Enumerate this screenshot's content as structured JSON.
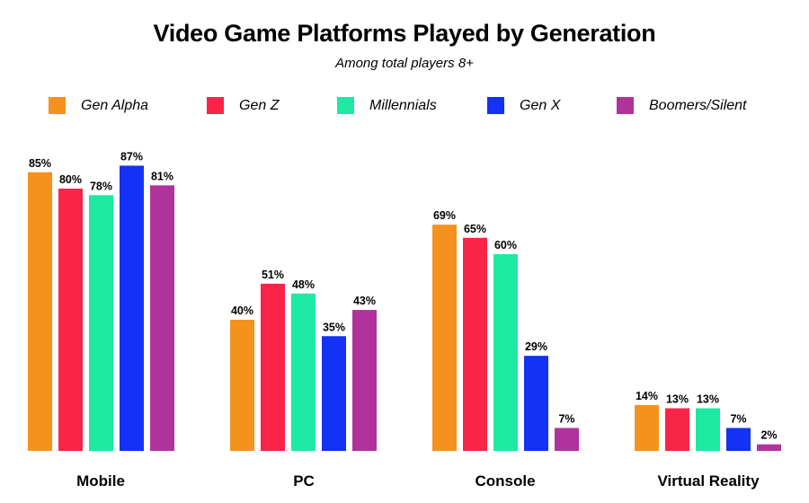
{
  "chart_data": {
    "type": "bar",
    "title": "Video Game Platforms Played by Generation",
    "subtitle": "Among total players 8+",
    "categories": [
      "Mobile",
      "PC",
      "Console",
      "Virtual Reality"
    ],
    "series": [
      {
        "name": "Gen Alpha",
        "color": "#f5921e",
        "values": [
          85,
          40,
          69,
          14
        ]
      },
      {
        "name": "Gen Z",
        "color": "#fa2449",
        "values": [
          80,
          51,
          65,
          13
        ]
      },
      {
        "name": "Millennials",
        "color": "#1de9a3",
        "values": [
          78,
          48,
          60,
          13
        ]
      },
      {
        "name": "Gen X",
        "color": "#1432f5",
        "values": [
          87,
          35,
          29,
          7
        ]
      },
      {
        "name": "Boomers/Silent",
        "color": "#b0339c",
        "values": [
          81,
          43,
          7,
          2
        ]
      }
    ],
    "value_suffix": "%",
    "ylim": [
      0,
      100
    ],
    "grid": false,
    "legend": "top"
  }
}
